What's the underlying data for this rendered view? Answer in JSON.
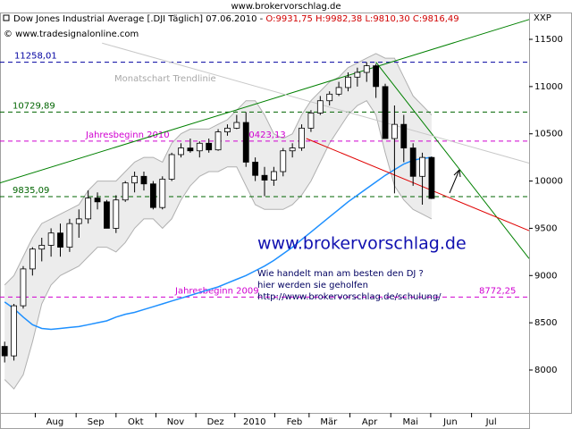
{
  "chart_data": {
    "type": "candlestick",
    "site_title": "www.brokervorschlag.de",
    "title": "Dow Jones Industrial Average [.DJI  Täglich] 07.06.2010 - ",
    "title_quote": "O:9931,75 H:9982,38 L:9810,30 C:9816,49",
    "source": "© www.tradesignalonline.com",
    "symbol": "XXP",
    "watermark": "www.brokervorschlag.de",
    "notes": [
      "Wie handelt man am besten  den DJ ?",
      "hier werden sie geholfen",
      "http://www.brokervorschlag.de/schulung/"
    ],
    "trendline_label": "Monatschart Trendlinie",
    "xlim": [
      0,
      57
    ],
    "xticks": [
      {
        "value": 3.8,
        "label": "Aug"
      },
      {
        "value": 8.2,
        "label": "Sep"
      },
      {
        "value": 12.5,
        "label": "Okt"
      },
      {
        "value": 16.8,
        "label": "Nov"
      },
      {
        "value": 21.1,
        "label": "Dez"
      },
      {
        "value": 25.3,
        "label": "2010"
      },
      {
        "value": 29.6,
        "label": "Feb"
      },
      {
        "value": 33.3,
        "label": "Mär"
      },
      {
        "value": 37.7,
        "label": "Apr"
      },
      {
        "value": 42.1,
        "label": "Mai"
      },
      {
        "value": 46.4,
        "label": "Jun"
      },
      {
        "value": 50.8,
        "label": "Jul"
      }
    ],
    "ylim": [
      7546,
      11746
    ],
    "yticks": [
      8000,
      8500,
      9000,
      9500,
      10000,
      10500,
      11000,
      11500
    ],
    "up_color": "#ffffff",
    "down_color": "#000000",
    "open": [
      8250,
      8150,
      8680,
      9070,
      9280,
      9320,
      9450,
      9300,
      9550,
      9600,
      9820,
      9780,
      9500,
      9800,
      9980,
      10050,
      9970,
      9720,
      10020,
      10280,
      10350,
      10320,
      10400,
      10330,
      10520,
      10560,
      10620,
      10200,
      10060,
      10010,
      10100,
      10320,
      10350,
      10560,
      10720,
      10850,
      10920,
      10990,
      11100,
      11150,
      11220,
      11000,
      10450,
      10600,
      10350,
      10050,
      10250
    ],
    "high": [
      8300,
      8700,
      9100,
      9300,
      9400,
      9500,
      9550,
      9600,
      9700,
      9900,
      9880,
      9800,
      9850,
      10000,
      10100,
      10100,
      10000,
      10050,
      10300,
      10400,
      10450,
      10420,
      10450,
      10550,
      10600,
      10700,
      10730,
      10250,
      10150,
      10150,
      10350,
      10400,
      10600,
      10750,
      10900,
      10950,
      11050,
      11150,
      11200,
      11258,
      11240,
      11030,
      10800,
      10700,
      10400,
      10300,
      10260
    ],
    "low": [
      8080,
      8100,
      8650,
      9000,
      9150,
      9200,
      9200,
      9250,
      9400,
      9550,
      9700,
      9500,
      9450,
      9780,
      9880,
      9900,
      9700,
      9700,
      10000,
      10250,
      10300,
      10250,
      10300,
      10320,
      10480,
      10550,
      10150,
      10000,
      9840,
      9950,
      10050,
      10250,
      10320,
      10520,
      10700,
      10800,
      10900,
      10950,
      11000,
      11050,
      10880,
      10450,
      9870,
      10200,
      9950,
      9750,
      9810
    ],
    "close": [
      8150,
      8680,
      9070,
      9280,
      9320,
      9450,
      9300,
      9550,
      9600,
      9820,
      9780,
      9500,
      9800,
      9980,
      10050,
      9970,
      9720,
      10020,
      10280,
      10350,
      10320,
      10400,
      10330,
      10520,
      10560,
      10620,
      10200,
      10060,
      10010,
      10100,
      10320,
      10350,
      10560,
      10720,
      10850,
      10920,
      10990,
      11100,
      11150,
      11220,
      11000,
      10450,
      10600,
      10350,
      10050,
      10250,
      9816
    ],
    "moving_average": {
      "color": "#1e90ff",
      "values": [
        8720,
        8650,
        8560,
        8480,
        8440,
        8430,
        8440,
        8450,
        8460,
        8480,
        8500,
        8520,
        8560,
        8590,
        8610,
        8640,
        8670,
        8700,
        8730,
        8760,
        8790,
        8820,
        8850,
        8880,
        8920,
        8960,
        9000,
        9050,
        9100,
        9160,
        9230,
        9300,
        9380,
        9460,
        9540,
        9620,
        9700,
        9780,
        9850,
        9920,
        9990,
        10060,
        10120,
        10180,
        10220,
        10240,
        10250
      ]
    },
    "bands": {
      "color": "#b0b0b0",
      "fill": "#ececec",
      "upper": [
        8900,
        9000,
        9200,
        9400,
        9550,
        9600,
        9650,
        9700,
        9750,
        9900,
        10000,
        10000,
        10000,
        10100,
        10200,
        10250,
        10250,
        10200,
        10400,
        10500,
        10550,
        10550,
        10550,
        10600,
        10650,
        10750,
        10850,
        10850,
        10700,
        10500,
        10450,
        10500,
        10700,
        10850,
        10950,
        11050,
        11100,
        11200,
        11250,
        11300,
        11350,
        11300,
        11300,
        11100,
        10900,
        10800,
        10700
      ],
      "lower": [
        7900,
        7800,
        7950,
        8300,
        8700,
        8900,
        9000,
        9050,
        9100,
        9200,
        9300,
        9300,
        9250,
        9350,
        9500,
        9600,
        9600,
        9500,
        9600,
        9800,
        9950,
        10050,
        10100,
        10100,
        10150,
        10150,
        9950,
        9750,
        9700,
        9700,
        9700,
        9750,
        9850,
        10000,
        10200,
        10400,
        10550,
        10700,
        10800,
        10850,
        10700,
        10300,
        9950,
        9800,
        9700,
        9650,
        9600
      ]
    },
    "hlines": [
      {
        "value": 11258.01,
        "label": "11258,01",
        "color": "#0000a0"
      },
      {
        "value": 10729.89,
        "label": "10729,89",
        "color": "#006400"
      },
      {
        "value": 10423.13,
        "label": "10423,13",
        "note": "Jahresbeginn 2010",
        "color": "#d000d0"
      },
      {
        "value": 9835.09,
        "label": "9835,09",
        "color": "#006400"
      },
      {
        "value": 8772.25,
        "label": "8772,25",
        "note": "Jahresbeginn 2009",
        "color": "#d000d0"
      }
    ],
    "trendlines": [
      {
        "color": "#008000",
        "points": [
          [
            0,
            9980
          ],
          [
            57,
            11710
          ]
        ]
      },
      {
        "color": "#008000",
        "points": [
          [
            40.5,
            11258
          ],
          [
            57,
            9180
          ]
        ]
      },
      {
        "color": "#e00000",
        "points": [
          [
            33,
            10450
          ],
          [
            57,
            9475
          ]
        ]
      },
      {
        "color": "#c8c8c8",
        "points": [
          [
            11,
            11460
          ],
          [
            57,
            10190
          ]
        ]
      }
    ]
  }
}
